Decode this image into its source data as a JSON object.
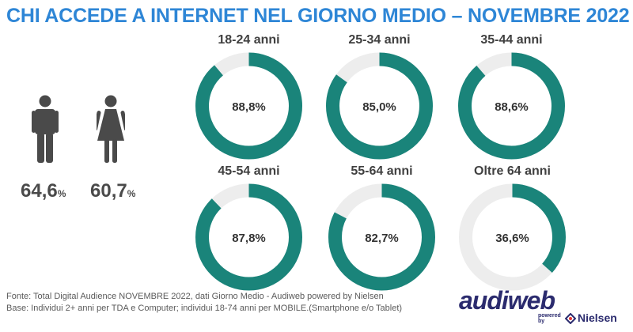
{
  "title": "CHI ACCEDE A INTERNET NEL GIORNO MEDIO – NOVEMBRE 2022",
  "gender": {
    "male": {
      "value": "64,6",
      "unit": "%"
    },
    "female": {
      "value": "60,7",
      "unit": "%"
    }
  },
  "chart_data": {
    "type": "pie",
    "series": [
      {
        "label": "18-24 anni",
        "value": 88.8,
        "display": "88,8%"
      },
      {
        "label": "25-34 anni",
        "value": 85.0,
        "display": "85,0%"
      },
      {
        "label": "35-44 anni",
        "value": 88.6,
        "display": "88,6%"
      },
      {
        "label": "45-54 anni",
        "value": 87.8,
        "display": "87,8%"
      },
      {
        "label": "55-64 anni",
        "value": 82.7,
        "display": "82,7%"
      },
      {
        "label": "Oltre 64 anni",
        "value": 36.6,
        "display": "36,6%"
      }
    ],
    "colors": {
      "filled": "#1a847a",
      "track": "#ededed"
    }
  },
  "footer": {
    "source": "Fonte: Total Digital Audience NOVEMBRE 2022, dati Giorno Medio - Audiweb powered by Nielsen",
    "base": "Base:  Individui 2+ anni per TDA e Computer; individui 18-74 anni per MOBILE.(Smartphone e/o Tablet)"
  },
  "logo": {
    "name": "audiweb",
    "powered": "powered",
    "by": "by",
    "partner": "Nielsen"
  },
  "icons": {
    "male": "male-person-icon",
    "female": "female-person-icon"
  },
  "colors": {
    "title": "#2e86d6",
    "person": "#4a4a4a"
  }
}
